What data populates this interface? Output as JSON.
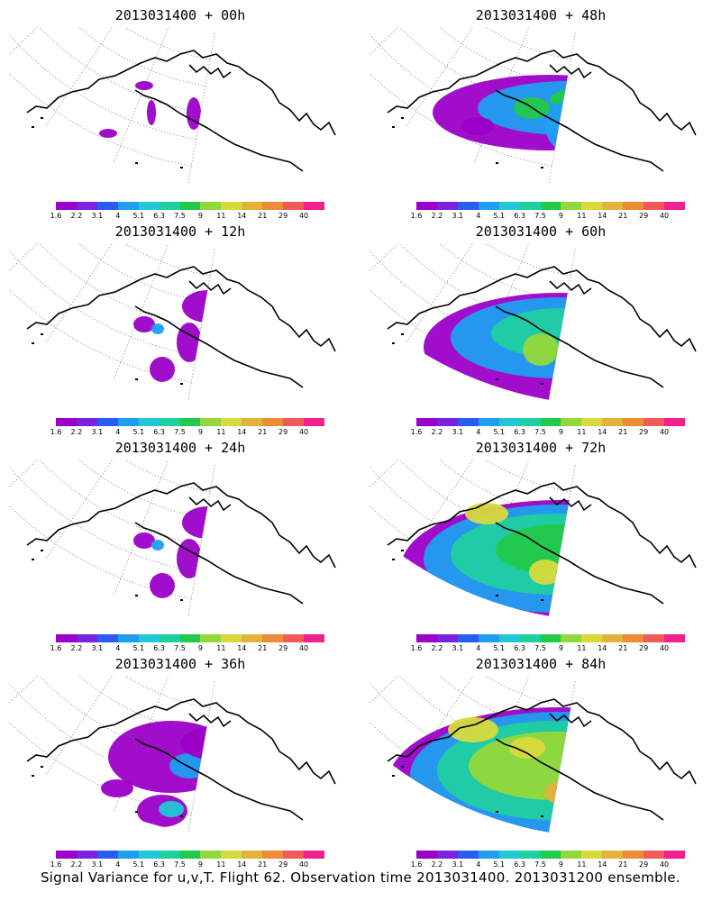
{
  "colorbar": {
    "labels": [
      "1.6",
      "2.2",
      "3.1",
      "4",
      "5.1",
      "6.3",
      "7.5",
      "9",
      "11",
      "14",
      "21",
      "29",
      "40"
    ],
    "colors": [
      "#9b00c8",
      "#7a22e0",
      "#2a5cf0",
      "#1f9ff0",
      "#22c8d6",
      "#20cfa0",
      "#22c94a",
      "#93d83a",
      "#d8da3c",
      "#e2b23a",
      "#ee8c36",
      "#f05a5a",
      "#f0208c"
    ]
  },
  "panels": [
    {
      "title": "2013031400 + 00h",
      "level": 0
    },
    {
      "title": "2013031400 + 48h",
      "level": 3
    },
    {
      "title": "2013031400 + 12h",
      "level": 1
    },
    {
      "title": "2013031400 + 60h",
      "level": 4
    },
    {
      "title": "2013031400 + 24h",
      "level": 1
    },
    {
      "title": "2013031400 + 72h",
      "level": 5
    },
    {
      "title": "2013031400 + 36h",
      "level": 2
    },
    {
      "title": "2013031400 + 84h",
      "level": 6
    }
  ],
  "footer": "Signal Variance for u,v,T. Flight 62. Observation time 2013031400. 2013031200 ensemble."
}
